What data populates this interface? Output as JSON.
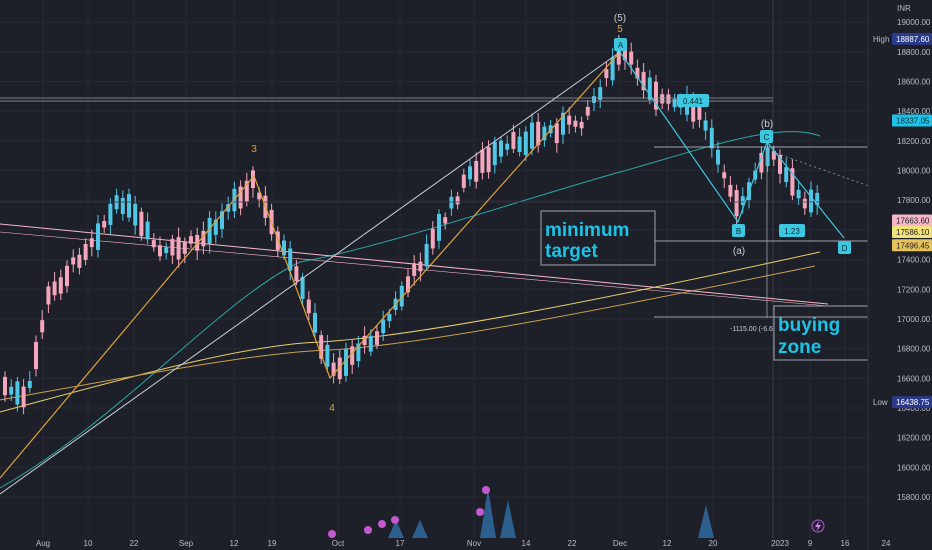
{
  "currency": "INR",
  "chart_data": {
    "type": "candlestick",
    "ylim": [
      15700,
      19350
    ],
    "y_ticks": [
      15800,
      16000,
      16200,
      16400,
      16600,
      16800,
      17000,
      17200,
      17400,
      17600,
      17800,
      18000,
      18200,
      18400,
      18600,
      18800,
      19000
    ],
    "y_tick_labels": [
      "15800.00",
      "16000.00",
      "16200.00",
      "16400.00",
      "16600.00",
      "16800.00",
      "17000.00",
      "17200.00",
      "17400.00",
      "17600.00",
      "17800.00",
      "18000.00",
      "18200.00",
      "18400.00",
      "18600.00",
      "18800.00",
      "19000.00"
    ],
    "x_ticks": [
      {
        "label": "Aug",
        "px": 43
      },
      {
        "label": "10",
        "px": 88
      },
      {
        "label": "22",
        "px": 134
      },
      {
        "label": "Sep",
        "px": 186
      },
      {
        "label": "12",
        "px": 234
      },
      {
        "label": "19",
        "px": 272
      },
      {
        "label": "Oct",
        "px": 338
      },
      {
        "label": "17",
        "px": 400
      },
      {
        "label": "Nov",
        "px": 474
      },
      {
        "label": "14",
        "px": 526
      },
      {
        "label": "22",
        "px": 572
      },
      {
        "label": "Dec",
        "px": 620
      },
      {
        "label": "12",
        "px": 667
      },
      {
        "label": "20",
        "px": 713
      },
      {
        "label": "2023",
        "px": 780
      },
      {
        "label": "9",
        "px": 810
      },
      {
        "label": "16",
        "px": 845
      },
      {
        "label": "24",
        "px": 886
      }
    ],
    "price_markers": [
      {
        "label": "High",
        "value": "18887.60",
        "color": "#2b3a8a",
        "text_color": "#ffffff"
      },
      {
        "label": "",
        "value": "18337.05",
        "color": "#1cc3e6",
        "text_color": "#0c2a33"
      },
      {
        "label": "",
        "value": "17663.60",
        "color": "#f7b6c8",
        "text_color": "#222222"
      },
      {
        "label": "",
        "value": "17586.10",
        "color": "#f1e27a",
        "text_color": "#222222"
      },
      {
        "label": "",
        "value": "17496.45",
        "color": "#e6c25a",
        "text_color": "#222222"
      },
      {
        "label": "Low",
        "value": "16438.75",
        "color": "#2b3a8a",
        "text_color": "#ffffff"
      }
    ],
    "wave_labels": [
      "3",
      "4",
      "(5)",
      "5",
      "(a)",
      "(b)"
    ],
    "point_labels": [
      "A",
      "B",
      "C",
      "D"
    ],
    "ratio_labels": [
      "0.441",
      "1.23"
    ],
    "measure_label": "-1115.00 (-6.6",
    "annotations": [
      {
        "line1": "minimum",
        "line2": "target"
      },
      {
        "line1": "buying",
        "line2": "zone"
      }
    ]
  }
}
